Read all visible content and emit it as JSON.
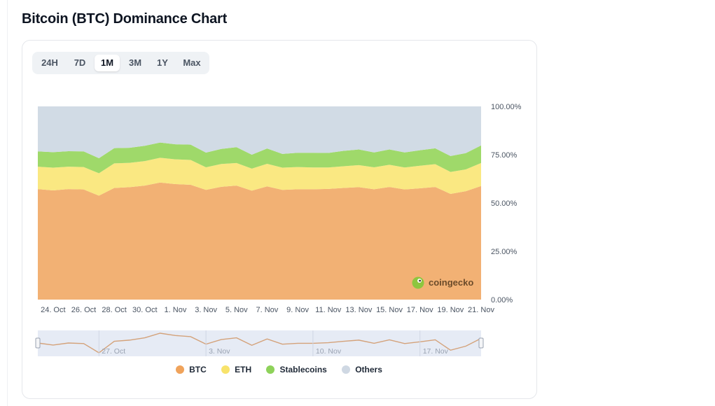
{
  "title": "Bitcoin (BTC) Dominance Chart",
  "range_tabs": [
    {
      "label": "24H",
      "active": false
    },
    {
      "label": "7D",
      "active": false
    },
    {
      "label": "1M",
      "active": true
    },
    {
      "label": "3M",
      "active": false
    },
    {
      "label": "1Y",
      "active": false
    },
    {
      "label": "Max",
      "active": false
    }
  ],
  "brand": {
    "name": "coingecko",
    "icon": "gecko-logo-icon"
  },
  "navigator": {
    "labels": [
      "27. Oct",
      "3. Nov",
      "10. Nov",
      "17. Nov"
    ]
  },
  "chart_data": {
    "type": "area",
    "stacked": true,
    "x": [
      "23. Oct",
      "24. Oct",
      "25. Oct",
      "26. Oct",
      "27. Oct",
      "28. Oct",
      "29. Oct",
      "30. Oct",
      "31. Oct",
      "1. Nov",
      "2. Nov",
      "3. Nov",
      "4. Nov",
      "5. Nov",
      "6. Nov",
      "7. Nov",
      "8. Nov",
      "9. Nov",
      "10. Nov",
      "11. Nov",
      "12. Nov",
      "13. Nov",
      "14. Nov",
      "15. Nov",
      "16. Nov",
      "17. Nov",
      "18. Nov",
      "19. Nov",
      "20. Nov",
      "21. Nov"
    ],
    "x_tick_labels": [
      "24. Oct",
      "26. Oct",
      "28. Oct",
      "30. Oct",
      "1. Nov",
      "3. Nov",
      "5. Nov",
      "7. Nov",
      "9. Nov",
      "11. Nov",
      "13. Nov",
      "15. Nov",
      "17. Nov",
      "19. Nov",
      "21. Nov"
    ],
    "y_tick_labels": [
      "100.00%",
      "75.00%",
      "50.00%",
      "25.00%",
      "0.00%"
    ],
    "ylim": [
      0,
      100
    ],
    "series": [
      {
        "name": "BTC",
        "color": "#f2b174",
        "values": [
          57.2,
          56.5,
          57.2,
          57.0,
          53.8,
          57.8,
          58.2,
          59.0,
          60.6,
          59.8,
          59.4,
          56.8,
          58.4,
          59.0,
          56.4,
          58.6,
          56.8,
          57.1,
          57.1,
          57.3,
          57.8,
          58.2,
          57.1,
          58.3,
          57.0,
          57.6,
          58.3,
          54.7,
          56.1,
          58.8
        ]
      },
      {
        "name": "ETH",
        "color": "#fae882",
        "values": [
          11.6,
          11.8,
          11.6,
          11.6,
          11.6,
          12.7,
          12.6,
          12.7,
          12.8,
          12.8,
          12.9,
          11.7,
          11.8,
          11.7,
          11.4,
          11.7,
          11.5,
          11.5,
          11.3,
          11.1,
          11.2,
          11.4,
          11.4,
          11.5,
          11.4,
          11.7,
          11.8,
          11.4,
          11.3,
          11.9
        ]
      },
      {
        "name": "Stablecoins",
        "color": "#9fd96a",
        "values": [
          7.9,
          8.0,
          8.0,
          8.1,
          7.8,
          7.9,
          7.8,
          7.9,
          7.9,
          7.8,
          7.9,
          7.6,
          7.8,
          8.2,
          7.2,
          7.9,
          7.1,
          7.4,
          7.6,
          7.5,
          8.0,
          8.1,
          7.7,
          7.9,
          7.8,
          8.0,
          8.2,
          8.2,
          8.4,
          9.1
        ]
      },
      {
        "name": "Others",
        "color": "#d1dbe5",
        "values": [
          23.3,
          23.7,
          23.2,
          23.3,
          26.8,
          21.6,
          21.4,
          20.4,
          18.7,
          19.6,
          19.8,
          23.9,
          22.0,
          21.1,
          25.0,
          21.8,
          24.6,
          24.0,
          24.0,
          24.1,
          23.0,
          22.3,
          23.8,
          22.3,
          23.8,
          22.7,
          21.7,
          25.7,
          24.2,
          20.2
        ]
      }
    ]
  }
}
